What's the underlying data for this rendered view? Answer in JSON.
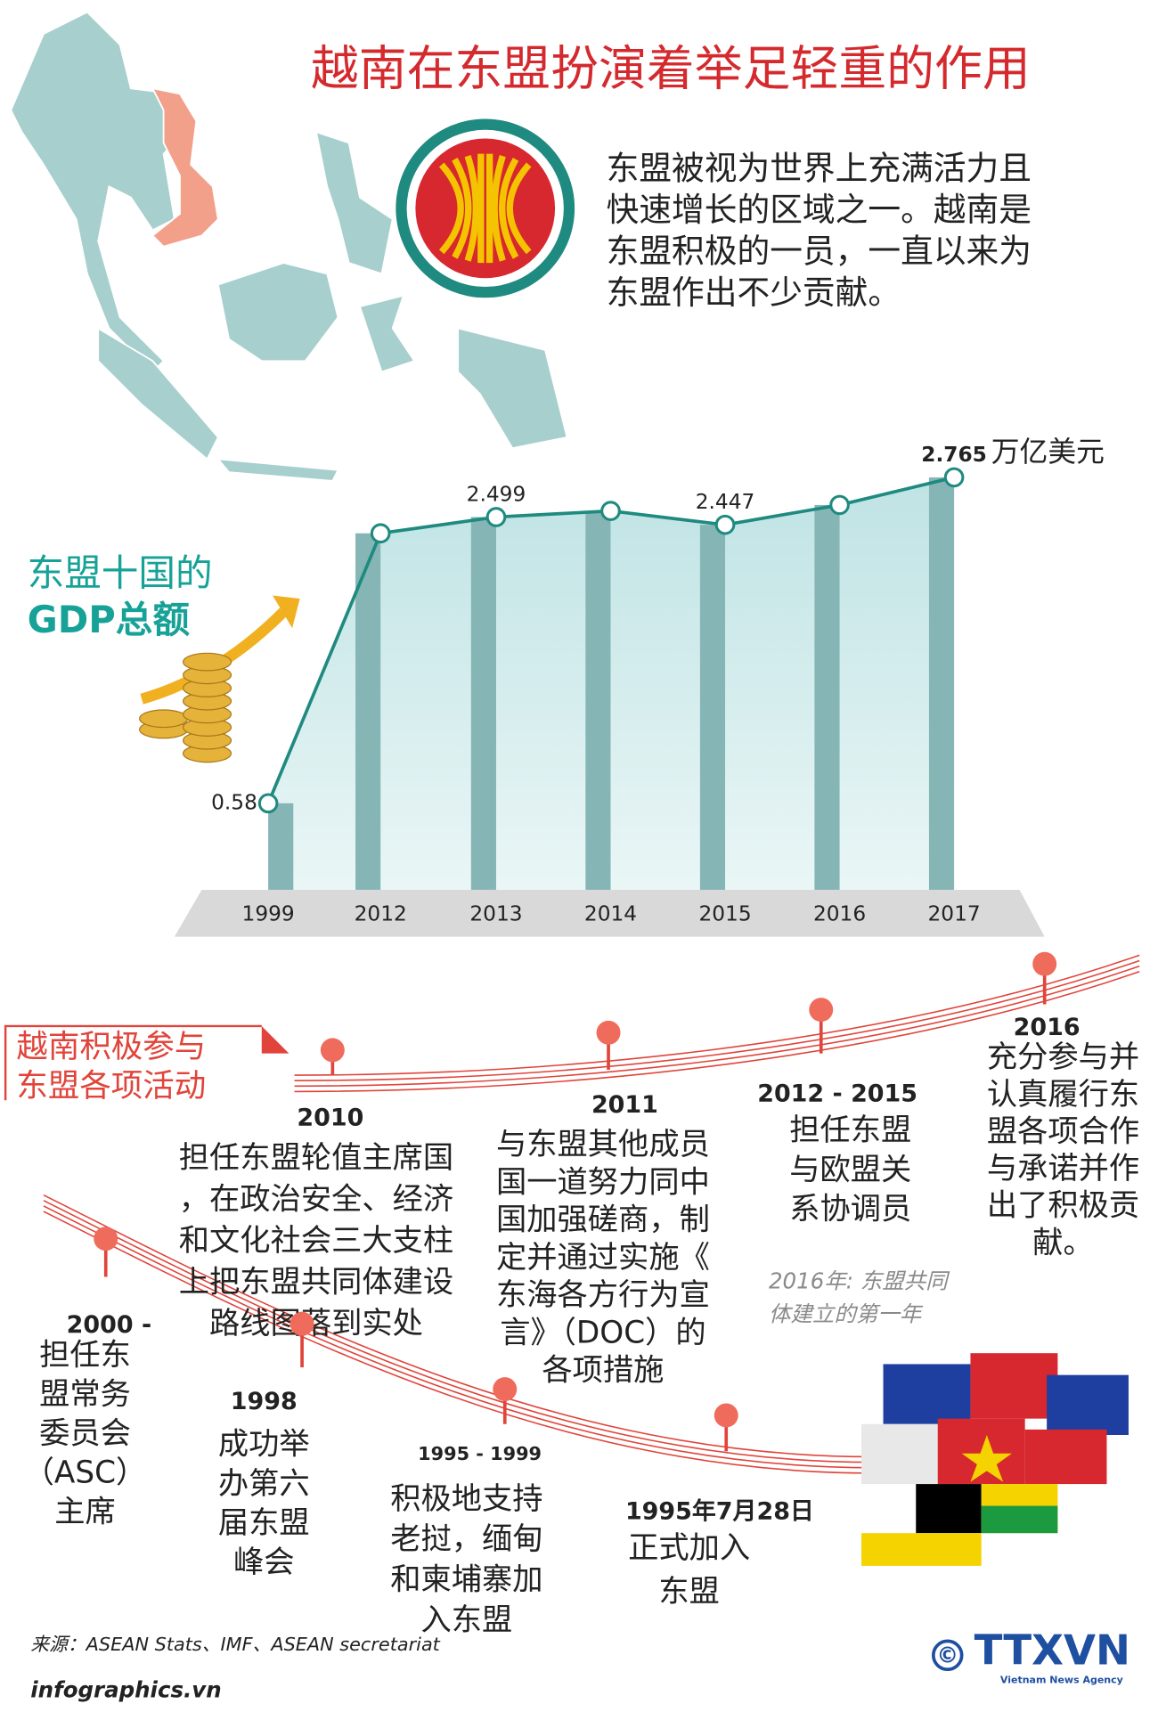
{
  "title": "越南在东盟扮演着举足轻重的作用",
  "intro": [
    "东盟被视为世界上充满活力且",
    "快速增长的区域之一。越南是",
    "东盟积极的一员，一直以来为",
    "东盟作出不少贡献。"
  ],
  "chart_data": {
    "type": "area",
    "title": [
      "东盟十国的",
      "GDP总额"
    ],
    "unit": "万亿美元",
    "categories": [
      "1999",
      "2012",
      "2013",
      "2014",
      "2015",
      "2016",
      "2017"
    ],
    "values": [
      0.58,
      2.39,
      2.499,
      2.54,
      2.447,
      2.58,
      2.765
    ],
    "value_labels": [
      "0.58",
      null,
      "2.499",
      null,
      "2.447",
      null,
      "2.765"
    ],
    "color": "#86b5b5",
    "line_color": "#1f8a80"
  },
  "timeline_title": [
    "越南积极参与",
    "东盟各项活动"
  ],
  "timeline": [
    {
      "year": "2010",
      "lines": [
        "担任东盟轮值主席国",
        "，在政治安全、经济",
        "和文化社会三大支柱",
        "上把东盟共同体建设",
        "路线图落到实处"
      ]
    },
    {
      "year": "2011",
      "lines": [
        "与东盟其他成员",
        "国一道努力同中",
        "国加强磋商，制",
        "定并通过实施《",
        "东海各方行为宣",
        "言》（DOC）的",
        "各项措施"
      ]
    },
    {
      "year": "2012 - 2015",
      "lines": [
        "担任东盟",
        "与欧盟关",
        "系协调员"
      ]
    },
    {
      "year": "2016",
      "lines": [
        "充分参与并",
        "认真履行东",
        "盟各项合作",
        "与承诺并作",
        "出了积极贡",
        "献。"
      ]
    },
    {
      "year": "2000 -",
      "lines": [
        "担任东",
        "盟常务",
        "委员会",
        "（ASC）",
        "主席"
      ]
    },
    {
      "year": "1998",
      "lines": [
        "成功举",
        "办第六",
        "届东盟",
        "峰会"
      ]
    },
    {
      "year": "1995 - 1999",
      "lines": [
        "积极地支持",
        "老挝，缅甸",
        "和柬埔寨加",
        "入东盟"
      ]
    },
    {
      "year": "1995年7月28日",
      "lines": [
        "正式加入",
        "东盟"
      ]
    }
  ],
  "note": [
    "2016年: 东盟共同",
    "体建立的第一年"
  ],
  "source": "来源：ASEAN Stats、IMF、ASEAN secretariat",
  "website": "infographics.vn",
  "copyright": "©",
  "logo": "TTXVN",
  "agency": "Vietnam News Agency"
}
